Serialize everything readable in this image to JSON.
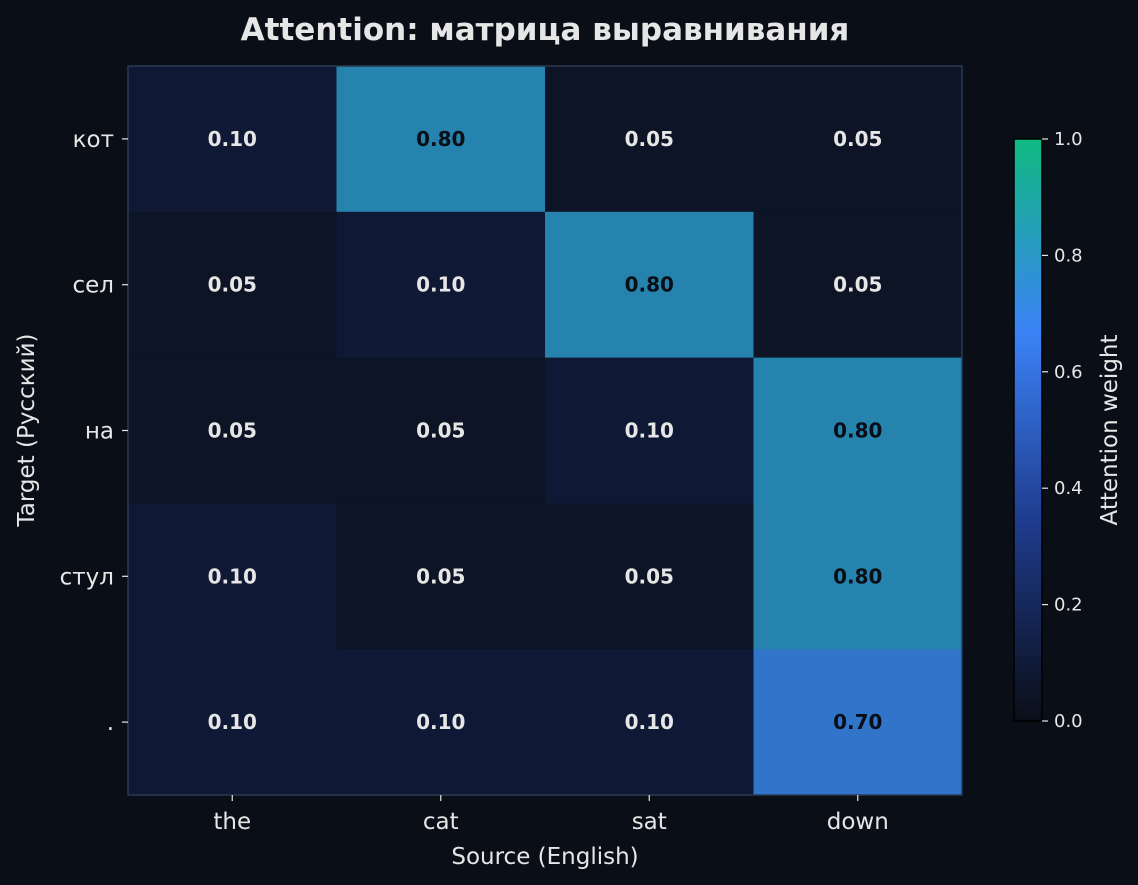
{
  "chart_data": {
    "type": "heatmap",
    "title": "Attention: матрица выравнивания",
    "xlabel": "Source (English)",
    "ylabel": "Target (Русский)",
    "x_categories": [
      "the",
      "cat",
      "sat",
      "down"
    ],
    "y_categories": [
      "кот",
      "сел",
      "на",
      "стул",
      "."
    ],
    "values": [
      [
        0.1,
        0.8,
        0.05,
        0.05
      ],
      [
        0.05,
        0.1,
        0.8,
        0.05
      ],
      [
        0.05,
        0.05,
        0.1,
        0.8
      ],
      [
        0.1,
        0.05,
        0.05,
        0.8
      ],
      [
        0.1,
        0.1,
        0.1,
        0.7
      ]
    ],
    "cell_labels": [
      [
        "0.10",
        "0.80",
        "0.05",
        "0.05"
      ],
      [
        "0.05",
        "0.10",
        "0.80",
        "0.05"
      ],
      [
        "0.05",
        "0.05",
        "0.10",
        "0.80"
      ],
      [
        "0.10",
        "0.05",
        "0.05",
        "0.80"
      ],
      [
        "0.10",
        "0.10",
        "0.10",
        "0.70"
      ]
    ],
    "colorbar": {
      "label": "Attention weight",
      "range": [
        0,
        1
      ],
      "ticks": [
        0.0,
        0.2,
        0.4,
        0.6,
        0.8,
        1.0
      ],
      "tick_labels": [
        "0.0",
        "0.2",
        "0.4",
        "0.6",
        "0.8",
        "1.0"
      ],
      "colors": [
        "#0a0e17",
        "#1e3a8a",
        "#3b82f6",
        "#10b981"
      ]
    },
    "grid": false,
    "legend": "colorbar-right"
  },
  "theme": {
    "background": "#0a0e17",
    "text": "#e6e6e6",
    "dark_text": "#0a0e17",
    "frame": "#2a3a50"
  }
}
